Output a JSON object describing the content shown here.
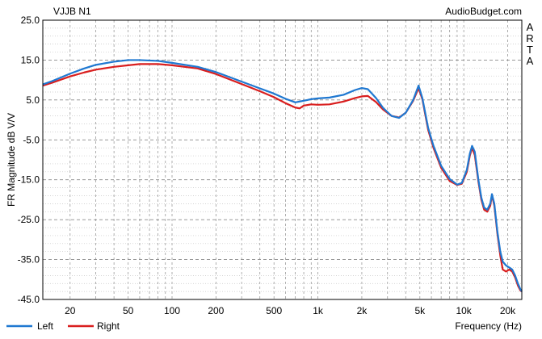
{
  "chart_data": {
    "type": "line",
    "title": "VJJB N1",
    "watermark": "AudioBudget.com",
    "side_label": "ARTA",
    "xlabel": "Frequency (Hz)",
    "ylabel": "FR Magnitude dB V/V",
    "x_scale": "log",
    "xlim": [
      13,
      25000
    ],
    "ylim": [
      -45,
      25
    ],
    "x_ticks": [
      {
        "value": 20,
        "label": "20"
      },
      {
        "value": 50,
        "label": "50"
      },
      {
        "value": 100,
        "label": "100"
      },
      {
        "value": 200,
        "label": "200"
      },
      {
        "value": 500,
        "label": "500"
      },
      {
        "value": 1000,
        "label": "1k"
      },
      {
        "value": 2000,
        "label": "2k"
      },
      {
        "value": 5000,
        "label": "5k"
      },
      {
        "value": 10000,
        "label": "10k"
      },
      {
        "value": 20000,
        "label": "20k"
      }
    ],
    "y_ticks": [
      {
        "value": 25,
        "label": "25.0"
      },
      {
        "value": 15,
        "label": "15.0"
      },
      {
        "value": 5,
        "label": "5.0"
      },
      {
        "value": -5,
        "label": "-5.0"
      },
      {
        "value": -15,
        "label": "-15.0"
      },
      {
        "value": -25,
        "label": "-25.0"
      },
      {
        "value": -35,
        "label": "-35.0"
      },
      {
        "value": -45,
        "label": "-45.0"
      }
    ],
    "grid": true,
    "legend_position": "bottom-left",
    "series": [
      {
        "name": "Left",
        "color": "#1f78d1",
        "points": [
          [
            13,
            8.9
          ],
          [
            15,
            9.7
          ],
          [
            20,
            11.6
          ],
          [
            25,
            12.9
          ],
          [
            30,
            13.8
          ],
          [
            40,
            14.6
          ],
          [
            50,
            15.0
          ],
          [
            60,
            15.0
          ],
          [
            80,
            14.8
          ],
          [
            100,
            14.3
          ],
          [
            150,
            13.3
          ],
          [
            200,
            12.0
          ],
          [
            300,
            9.6
          ],
          [
            400,
            7.9
          ],
          [
            500,
            6.6
          ],
          [
            600,
            5.3
          ],
          [
            700,
            4.4
          ],
          [
            800,
            4.8
          ],
          [
            900,
            5.2
          ],
          [
            1000,
            5.4
          ],
          [
            1200,
            5.6
          ],
          [
            1500,
            6.3
          ],
          [
            1800,
            7.5
          ],
          [
            2000,
            8.0
          ],
          [
            2200,
            7.7
          ],
          [
            2500,
            5.5
          ],
          [
            2800,
            3.0
          ],
          [
            3200,
            1.0
          ],
          [
            3600,
            0.5
          ],
          [
            4000,
            1.8
          ],
          [
            4500,
            5.0
          ],
          [
            4900,
            8.6
          ],
          [
            5200,
            5.5
          ],
          [
            5700,
            -2.0
          ],
          [
            6200,
            -6.5
          ],
          [
            7000,
            -11.5
          ],
          [
            8000,
            -14.8
          ],
          [
            9000,
            -16.2
          ],
          [
            9700,
            -15.8
          ],
          [
            10500,
            -12.5
          ],
          [
            11000,
            -8.5
          ],
          [
            11400,
            -6.5
          ],
          [
            11900,
            -8.0
          ],
          [
            12600,
            -15.0
          ],
          [
            13200,
            -19.5
          ],
          [
            13800,
            -22.0
          ],
          [
            14500,
            -22.5
          ],
          [
            15200,
            -21.0
          ],
          [
            15600,
            -18.6
          ],
          [
            16200,
            -21.0
          ],
          [
            17000,
            -28.0
          ],
          [
            17800,
            -33.0
          ],
          [
            18500,
            -35.5
          ],
          [
            19500,
            -36.5
          ],
          [
            20500,
            -37.0
          ],
          [
            21500,
            -37.5
          ],
          [
            22500,
            -39.0
          ],
          [
            23500,
            -41.0
          ],
          [
            24500,
            -42.5
          ],
          [
            25000,
            -43.0
          ]
        ]
      },
      {
        "name": "Right",
        "color": "#d91e1e",
        "points": [
          [
            13,
            8.6
          ],
          [
            15,
            9.3
          ],
          [
            20,
            10.9
          ],
          [
            25,
            11.9
          ],
          [
            30,
            12.6
          ],
          [
            40,
            13.3
          ],
          [
            50,
            13.7
          ],
          [
            60,
            14.0
          ],
          [
            80,
            14.0
          ],
          [
            100,
            13.7
          ],
          [
            150,
            12.9
          ],
          [
            200,
            11.5
          ],
          [
            300,
            9.0
          ],
          [
            400,
            7.2
          ],
          [
            500,
            5.7
          ],
          [
            600,
            4.2
          ],
          [
            700,
            3.1
          ],
          [
            750,
            2.9
          ],
          [
            800,
            3.6
          ],
          [
            900,
            3.9
          ],
          [
            1000,
            3.8
          ],
          [
            1200,
            3.9
          ],
          [
            1500,
            4.6
          ],
          [
            1800,
            5.5
          ],
          [
            2000,
            5.9
          ],
          [
            2200,
            6.0
          ],
          [
            2500,
            4.5
          ],
          [
            2800,
            2.6
          ],
          [
            3200,
            1.0
          ],
          [
            3600,
            0.6
          ],
          [
            4000,
            1.8
          ],
          [
            4500,
            4.8
          ],
          [
            4900,
            8.0
          ],
          [
            5200,
            5.2
          ],
          [
            5700,
            -2.5
          ],
          [
            6200,
            -7.0
          ],
          [
            7000,
            -12.0
          ],
          [
            8000,
            -15.3
          ],
          [
            9000,
            -16.3
          ],
          [
            9700,
            -16.0
          ],
          [
            10500,
            -13.0
          ],
          [
            11000,
            -9.0
          ],
          [
            11400,
            -7.0
          ],
          [
            11900,
            -8.8
          ],
          [
            12600,
            -15.5
          ],
          [
            13200,
            -20.0
          ],
          [
            13800,
            -22.5
          ],
          [
            14500,
            -23.0
          ],
          [
            15200,
            -21.5
          ],
          [
            15600,
            -18.8
          ],
          [
            16200,
            -21.5
          ],
          [
            17000,
            -28.5
          ],
          [
            17800,
            -34.0
          ],
          [
            18500,
            -37.5
          ],
          [
            19500,
            -38.0
          ],
          [
            20500,
            -37.5
          ],
          [
            21500,
            -38.0
          ],
          [
            22500,
            -39.5
          ],
          [
            23500,
            -41.5
          ],
          [
            24500,
            -42.8
          ],
          [
            25000,
            -43.0
          ]
        ]
      }
    ]
  }
}
